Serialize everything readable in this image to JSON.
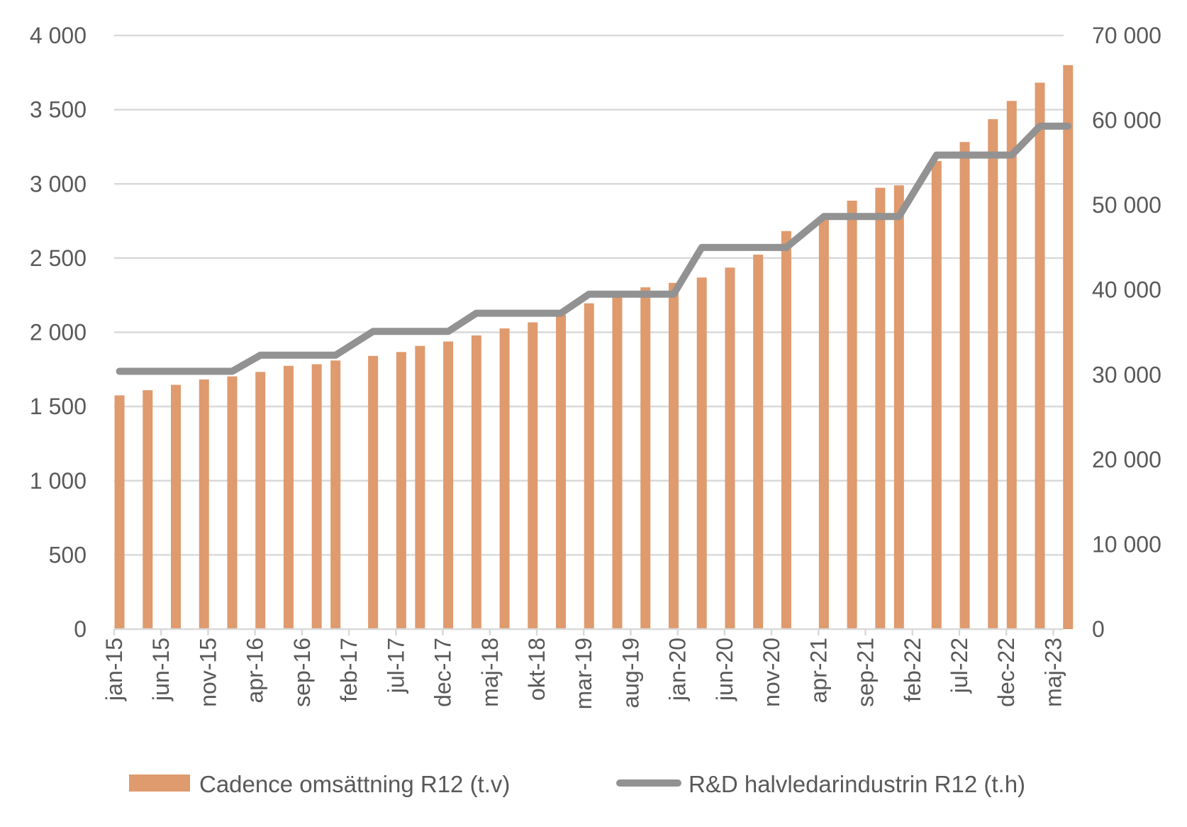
{
  "chart_data": {
    "type": "bar+line",
    "title": "",
    "colors": {
      "bars": "#DF9A6E",
      "line": "#929292",
      "grid": "#D9D9D9",
      "text": "#595959"
    },
    "x_axis": {
      "type": "date-monthly",
      "range": [
        "jan-15",
        "jul-23"
      ],
      "tick_labels": [
        "jan-15",
        "jun-15",
        "nov-15",
        "apr-16",
        "sep-16",
        "feb-17",
        "jul-17",
        "dec-17",
        "maj-18",
        "okt-18",
        "mar-19",
        "aug-19",
        "jan-20",
        "jun-20",
        "nov-20",
        "apr-21",
        "sep-21",
        "feb-22",
        "jul-22",
        "dec-22",
        "maj-23"
      ]
    },
    "y_left": {
      "ylim": [
        0,
        4000
      ],
      "ticks": [
        0,
        500,
        1000,
        1500,
        2000,
        2500,
        3000,
        3500,
        4000
      ],
      "tick_labels": [
        "0",
        "500",
        "1 000",
        "1 500",
        "2 000",
        "2 500",
        "3 000",
        "3 500",
        "4 000"
      ]
    },
    "y_right": {
      "ylim": [
        0,
        70000
      ],
      "ticks": [
        0,
        10000,
        20000,
        30000,
        40000,
        50000,
        60000,
        70000
      ],
      "tick_labels": [
        "0",
        "10 000",
        "20 000",
        "30 000",
        "40 000",
        "50 000",
        "60 000",
        "70 000"
      ]
    },
    "grid": true,
    "legend_position": "bottom",
    "x": [
      "jan-15",
      "apr-15",
      "jul-15",
      "okt-15",
      "jan-16",
      "apr-16",
      "jul-16",
      "okt-16",
      "dec-16",
      "apr-17",
      "jul-17",
      "sep-17",
      "dec-17",
      "mar-18",
      "jun-18",
      "sep-18",
      "dec-18",
      "mar-19",
      "jun-19",
      "sep-19",
      "dec-19",
      "mar-20",
      "jun-20",
      "sep-20",
      "dec-20",
      "apr-21",
      "jul-21",
      "okt-21",
      "dec-21",
      "apr-22",
      "jul-22",
      "okt-22",
      "dec-22",
      "mar-23",
      "jun-23"
    ],
    "series": [
      {
        "name": "Cadence omsättning R12 (t.v)",
        "type": "bar",
        "axis": "left",
        "values": [
          1575,
          1610,
          1646,
          1682,
          1703,
          1733,
          1774,
          1785,
          1810,
          1841,
          1867,
          1908,
          1938,
          1979,
          2026,
          2067,
          2118,
          2195,
          2241,
          2303,
          2333,
          2369,
          2436,
          2523,
          2682,
          2774,
          2887,
          2974,
          2990,
          3154,
          3282,
          3436,
          3559,
          3682,
          3800
        ]
      },
      {
        "name": "R&D halvledarindustrin R12 (t.h)",
        "type": "line",
        "axis": "right",
        "values": [
          30400,
          30400,
          30400,
          30400,
          30400,
          32300,
          32300,
          32300,
          32300,
          35100,
          35100,
          35100,
          35100,
          37250,
          37250,
          37250,
          37250,
          39500,
          39500,
          39500,
          39500,
          45000,
          45000,
          45000,
          45000,
          48650,
          48650,
          48650,
          48650,
          55900,
          55900,
          55900,
          55900,
          59300,
          59300
        ]
      }
    ]
  }
}
